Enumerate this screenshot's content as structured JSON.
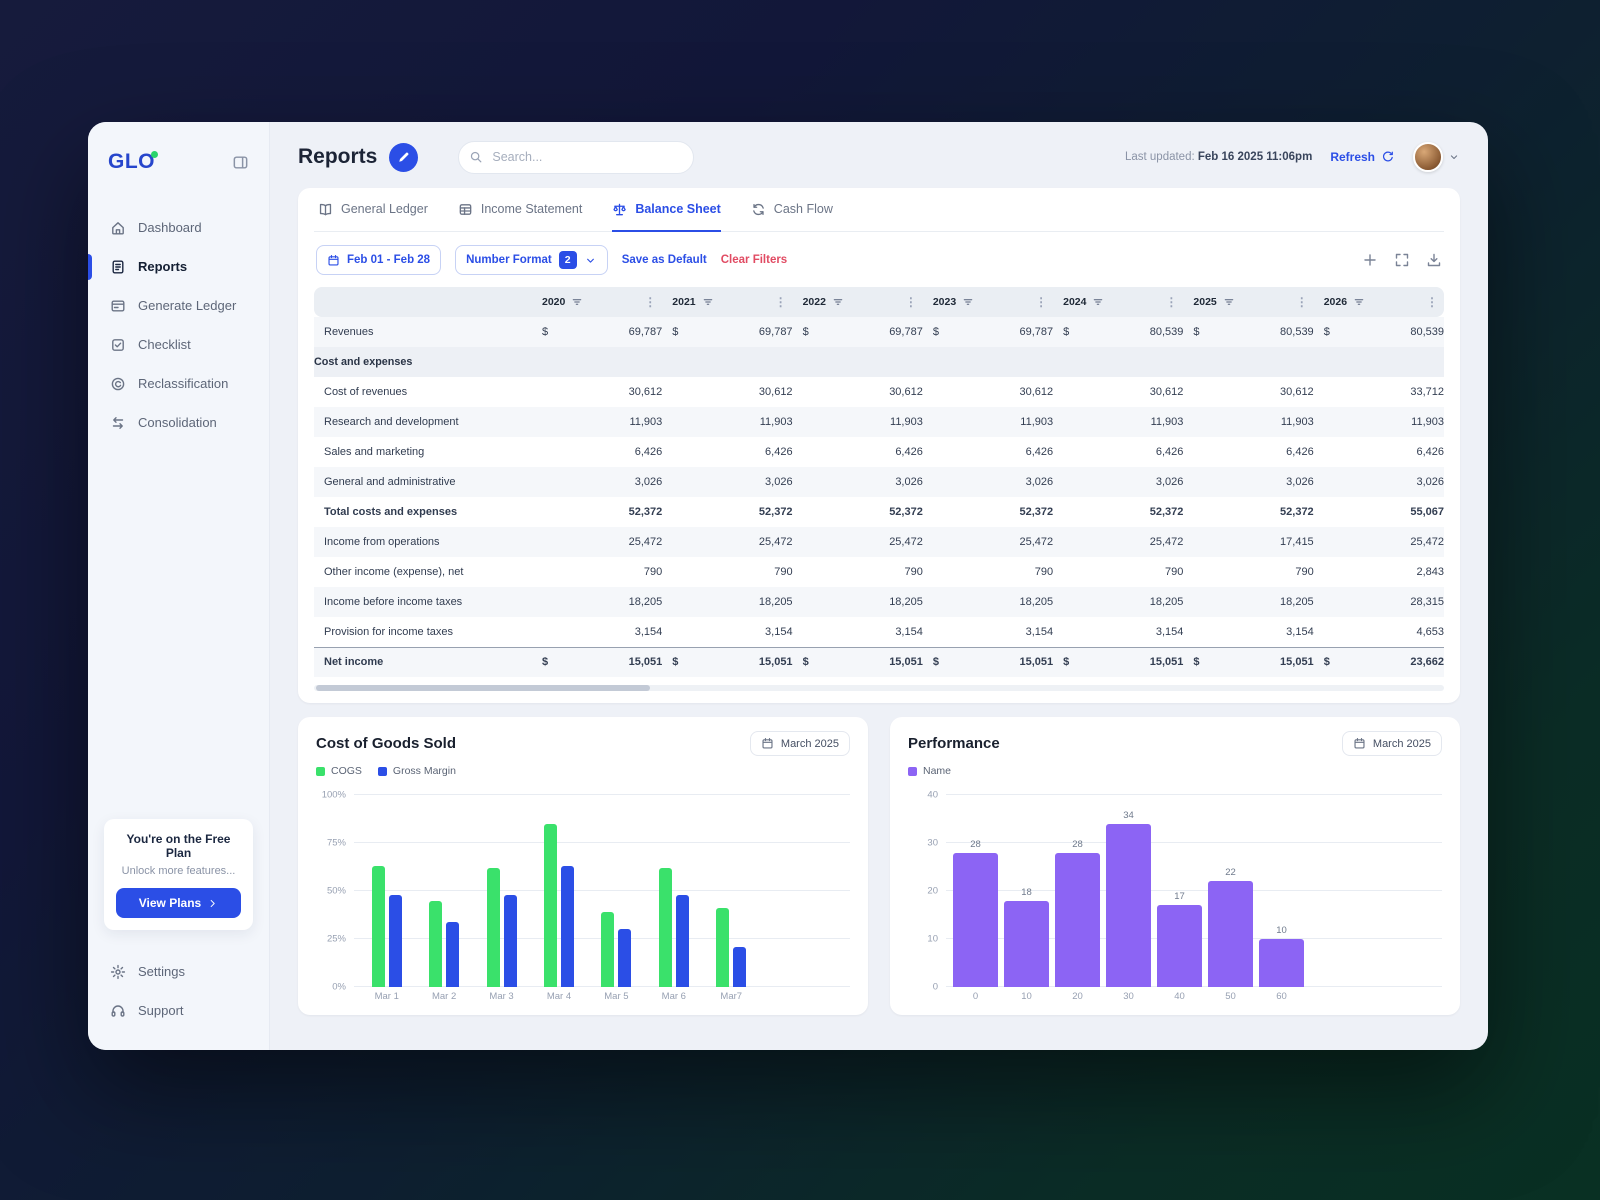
{
  "colors": {
    "accent": "#2b4ee6",
    "green": "#3ae16b",
    "purple": "#8c64f4",
    "red": "#e14b63"
  },
  "app": {
    "logo": "GLO"
  },
  "sidebar": {
    "items": [
      {
        "label": "Dashboard",
        "icon": "home",
        "active": false
      },
      {
        "label": "Reports",
        "icon": "reports",
        "active": true
      },
      {
        "label": "Generate Ledger",
        "icon": "ledger",
        "active": false
      },
      {
        "label": "Checklist",
        "icon": "checklist",
        "active": false
      },
      {
        "label": "Reclassification",
        "icon": "reclass",
        "active": false
      },
      {
        "label": "Consolidation",
        "icon": "consolidation",
        "active": false
      }
    ],
    "plan_card": {
      "title": "You're on the Free Plan",
      "subtitle": "Unlock more features...",
      "button": "View Plans"
    },
    "footer_items": [
      {
        "label": "Settings",
        "icon": "gear"
      },
      {
        "label": "Support",
        "icon": "support"
      }
    ]
  },
  "header": {
    "title": "Reports",
    "search_placeholder": "Search...",
    "last_updated_label": "Last updated:",
    "last_updated_value": "Feb 16 2025 11:06pm",
    "refresh_label": "Refresh"
  },
  "tabs": [
    {
      "label": "General Ledger",
      "icon": "book",
      "active": false
    },
    {
      "label": "Income Statement",
      "icon": "grid",
      "active": false
    },
    {
      "label": "Balance Sheet",
      "icon": "scales",
      "active": true
    },
    {
      "label": "Cash Flow",
      "icon": "cashflow",
      "active": false
    }
  ],
  "filters": {
    "date_range": "Feb 01 - Feb 28",
    "number_format_label": "Number Format",
    "number_format_badge": "2",
    "save_default": "Save as Default",
    "clear_filters": "Clear Filters"
  },
  "table": {
    "years": [
      "2020",
      "2021",
      "2022",
      "2023",
      "2024",
      "2025",
      "2026"
    ],
    "rows": [
      {
        "label": "Revenues",
        "currency": true,
        "shade": true,
        "values": [
          "69,787",
          "69,787",
          "69,787",
          "69,787",
          "80,539",
          "80,539",
          "80,539"
        ]
      },
      {
        "label": "Cost and expenses",
        "section": true
      },
      {
        "label": "Cost of revenues",
        "values": [
          "30,612",
          "30,612",
          "30,612",
          "30,612",
          "30,612",
          "30,612",
          "33,712"
        ]
      },
      {
        "label": "Research and development",
        "shade": true,
        "values": [
          "11,903",
          "11,903",
          "11,903",
          "11,903",
          "11,903",
          "11,903",
          "11,903"
        ]
      },
      {
        "label": "Sales and marketing",
        "values": [
          "6,426",
          "6,426",
          "6,426",
          "6,426",
          "6,426",
          "6,426",
          "6,426"
        ]
      },
      {
        "label": "General and administrative",
        "shade": true,
        "values": [
          "3,026",
          "3,026",
          "3,026",
          "3,026",
          "3,026",
          "3,026",
          "3,026"
        ]
      },
      {
        "label": "Total costs and expenses",
        "bold": true,
        "values": [
          "52,372",
          "52,372",
          "52,372",
          "52,372",
          "52,372",
          "52,372",
          "55,067"
        ]
      },
      {
        "label": "Income from operations",
        "shade": true,
        "values": [
          "25,472",
          "25,472",
          "25,472",
          "25,472",
          "25,472",
          "17,415",
          "25,472"
        ]
      },
      {
        "label": "Other income (expense), net",
        "values": [
          "790",
          "790",
          "790",
          "790",
          "790",
          "790",
          "2,843"
        ]
      },
      {
        "label": "Income before income taxes",
        "shade": true,
        "values": [
          "18,205",
          "18,205",
          "18,205",
          "18,205",
          "18,205",
          "18,205",
          "28,315"
        ]
      },
      {
        "label": "Provision for income taxes",
        "values": [
          "3,154",
          "3,154",
          "3,154",
          "3,154",
          "3,154",
          "3,154",
          "4,653"
        ]
      },
      {
        "label": "Net income",
        "currency": true,
        "bold": true,
        "shade": true,
        "topline": true,
        "values": [
          "15,051",
          "15,051",
          "15,051",
          "15,051",
          "15,051",
          "15,051",
          "23,662"
        ]
      }
    ]
  },
  "chart_data": [
    {
      "type": "bar",
      "title": "Cost of Goods Sold",
      "period": "March 2025",
      "categories": [
        "Mar 1",
        "Mar 2",
        "Mar 3",
        "Mar 4",
        "Mar 5",
        "Mar 6",
        "Mar7"
      ],
      "series": [
        {
          "name": "COGS",
          "color": "#3ae16b",
          "values": [
            63,
            45,
            62,
            85,
            39,
            62,
            41
          ]
        },
        {
          "name": "Gross Margin",
          "color": "#2b4ee6",
          "values": [
            48,
            34,
            48,
            63,
            30,
            48,
            21
          ]
        }
      ],
      "ylim": [
        0,
        100
      ],
      "yticks": [
        "0%",
        "25%",
        "50%",
        "75%",
        "100%"
      ],
      "grid": true,
      "legend_position": "top-left",
      "show_value_labels": false
    },
    {
      "type": "bar",
      "title": "Performance",
      "period": "March 2025",
      "categories": [
        "0",
        "10",
        "20",
        "30",
        "40",
        "50",
        "60"
      ],
      "series": [
        {
          "name": "Name",
          "color": "#8c64f4",
          "values": [
            28,
            18,
            28,
            34,
            17,
            22,
            10
          ]
        }
      ],
      "ylim": [
        0,
        40
      ],
      "yticks": [
        "0",
        "10",
        "20",
        "30",
        "40"
      ],
      "grid": true,
      "legend_position": "top-left",
      "show_value_labels": true
    }
  ]
}
